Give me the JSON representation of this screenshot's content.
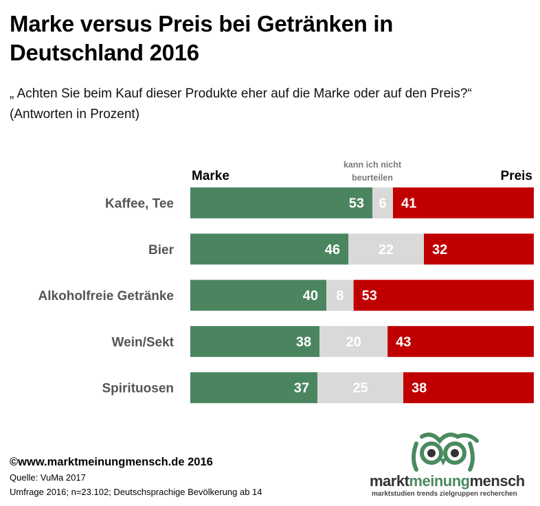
{
  "title": "Marke versus Preis bei Getränken in Deutschland 2016",
  "subtitle": "„ Achten Sie beim Kauf dieser Produkte eher auf die Marke oder auf den Preis?“ (Antworten in Prozent)",
  "colors": {
    "marke": "#4a8560",
    "neutral": "#d9d9d9",
    "preis": "#c00000",
    "label_on_dark": "#ffffff"
  },
  "chart_data": {
    "type": "bar",
    "orientation": "horizontal",
    "stacked": true,
    "categories": [
      "Kaffee, Tee",
      "Bier",
      "Alkoholfreie Getränke",
      "Wein/Sekt",
      "Spirituosen"
    ],
    "series": [
      {
        "name": "Marke",
        "values": [
          53,
          46,
          40,
          38,
          37
        ]
      },
      {
        "name": "kann ich nicht beurteilen",
        "values": [
          6,
          22,
          8,
          20,
          25
        ]
      },
      {
        "name": "Preis",
        "values": [
          41,
          32,
          53,
          43,
          38
        ]
      }
    ],
    "legend_position": "top",
    "grid": false
  },
  "footer": {
    "copyright": "©www.marktmeinungmensch.de 2016",
    "source": "Quelle: VuMa 2017",
    "survey": "Umfrage 2016; n=23.102; Deutschsprachige Bevölkerung ab 14"
  },
  "logo": {
    "brand_part1": "markt",
    "brand_part2": "meinung",
    "brand_part3": "mensch",
    "tagline": "marktstudien trends zielgruppen recherchen"
  }
}
